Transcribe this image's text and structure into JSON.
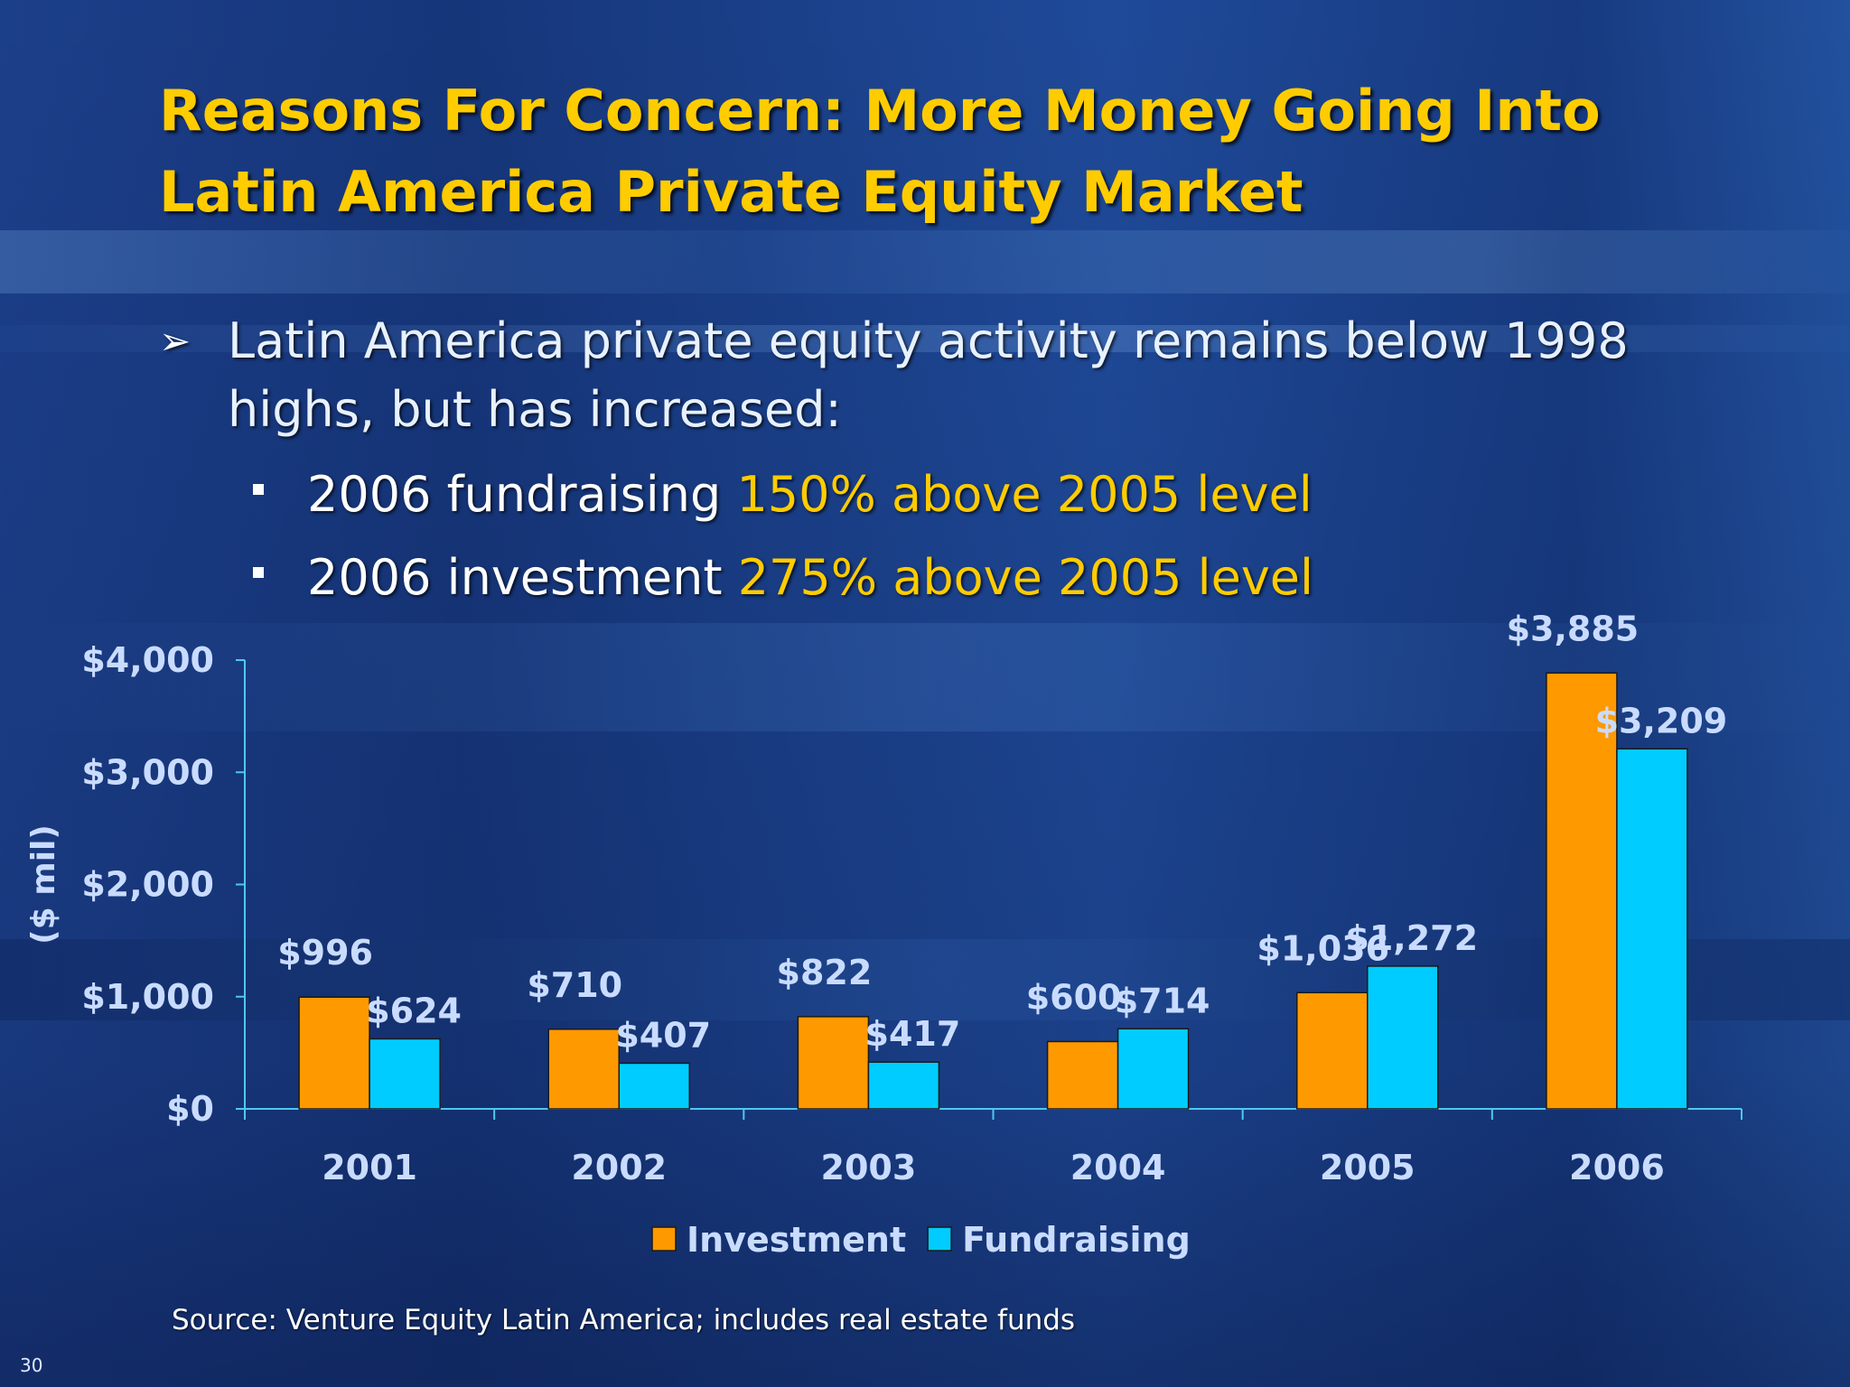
{
  "slide": {
    "title_line1": "Reasons For Concern: More Money Going Into",
    "title_line2": "Latin America Private Equity Market",
    "bullet_main_line1": "Latin America private equity activity remains below 1998",
    "bullet_main_line2": "highs, but has increased:",
    "sub_bullets": [
      {
        "prefix": "2006 fundraising ",
        "highlight": "150% above 2005 level"
      },
      {
        "prefix": "2006 investment ",
        "highlight": "275% above 2005 level"
      }
    ],
    "source": "Source: Venture Equity Latin America; includes real estate funds",
    "page_number": "30",
    "colors": {
      "title": "#ffcc00",
      "highlight": "#ffcc00",
      "text": "#ffffff"
    }
  },
  "chart_data": {
    "type": "bar",
    "ylabel": "($ mil)",
    "ylim": [
      0,
      4000
    ],
    "yticks": [
      0,
      1000,
      2000,
      3000,
      4000
    ],
    "ytick_labels": [
      "$0",
      "$1,000",
      "$2,000",
      "$3,000",
      "$4,000"
    ],
    "categories": [
      "2001",
      "2002",
      "2003",
      "2004",
      "2005",
      "2006"
    ],
    "series": [
      {
        "name": "Investment",
        "color": "#ff9900",
        "values": [
          996,
          710,
          822,
          600,
          1036,
          3885
        ],
        "labels": [
          "$996",
          "$710",
          "$822",
          "$600",
          "$1,036",
          "$3,885"
        ]
      },
      {
        "name": "Fundraising",
        "color": "#00ccff",
        "values": [
          624,
          407,
          417,
          714,
          1272,
          3209
        ],
        "labels": [
          "$624",
          "$407",
          "$417",
          "$714",
          "$1,272",
          "$3,209"
        ]
      }
    ],
    "legend": "bottom-center",
    "grid": false
  }
}
